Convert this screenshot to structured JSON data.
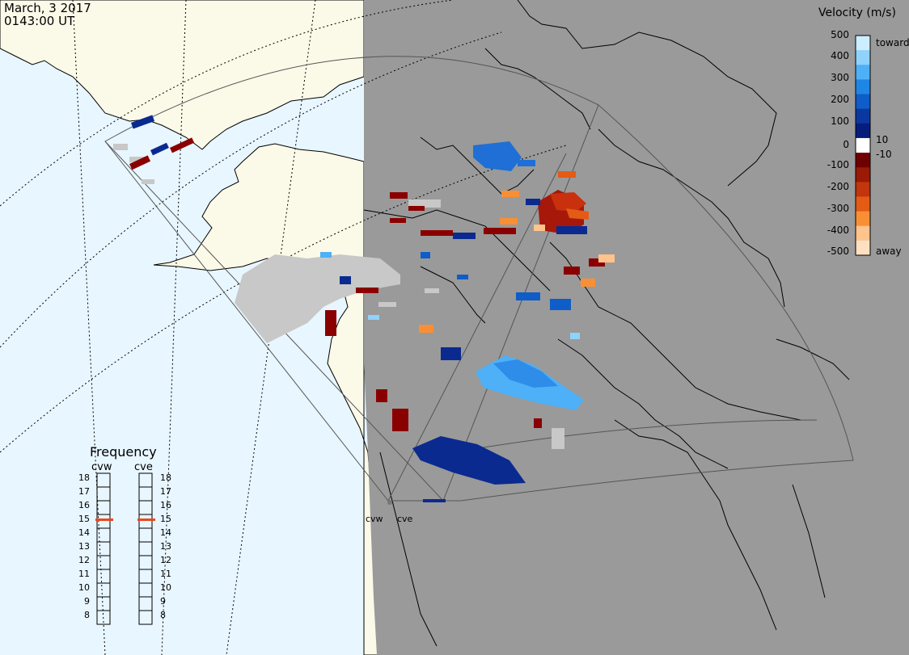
{
  "header": {
    "date": "March, 3 2017",
    "time": "0143:00 UT"
  },
  "colors": {
    "ocean_day": "#e8f6ff",
    "land_day": "#fbf9e8",
    "night": "#9a9a9a",
    "coast": "#000000",
    "grid": "#000000",
    "ground_scatter": "#c8c8c8"
  },
  "velocity_scale": {
    "title": "Velocity (m/s)",
    "ticks": [
      "500",
      "400",
      "300",
      "200",
      "100",
      "10",
      "0",
      "-10",
      "-100",
      "-200",
      "-300",
      "-400",
      "-500"
    ],
    "toward_label": "toward",
    "away_label": "away",
    "colors_top_to_bottom": [
      "#cdeeff",
      "#8fd2fb",
      "#4eb0f6",
      "#1f86e6",
      "#0f5dc8",
      "#0a38a0",
      "#061d7c",
      "#ffffff",
      "#6e0000",
      "#9a1a06",
      "#c2360e",
      "#e35b14",
      "#f98f34",
      "#ffc48c",
      "#ffe0c2"
    ]
  },
  "frequency_panel": {
    "title": "Frequency",
    "radars": [
      {
        "name": "cvw",
        "frequency_mhz": 15
      },
      {
        "name": "cve",
        "frequency_mhz": 15
      }
    ],
    "ticks": [
      "18",
      "17",
      "16",
      "15",
      "14",
      "13",
      "12",
      "11",
      "10",
      "9",
      "8"
    ],
    "marker_color": "#e8491e"
  },
  "radars": [
    {
      "code": "cvw",
      "label": "cvw"
    },
    {
      "code": "cve",
      "label": "cve"
    }
  ]
}
